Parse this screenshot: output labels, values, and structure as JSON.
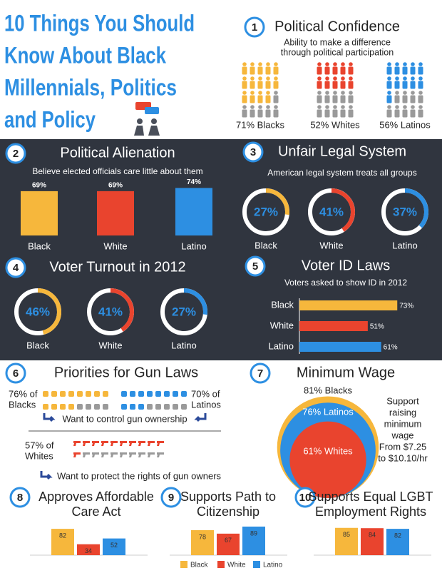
{
  "title": [
    "10 Things You Should",
    "Know About Black",
    "Millennials, Politics",
    "and Policy"
  ],
  "colors": [
    "#f6b73c",
    "#e9442e",
    "#2d8fe2"
  ],
  "legend": [
    "Black",
    "White",
    "Latino"
  ],
  "political_confidence": {
    "number": "1",
    "title": "Political Confidence",
    "subtitle": [
      "Ability to make a difference",
      "through political participation"
    ],
    "groups": [
      {
        "label": "71% Blacks",
        "value": 71
      },
      {
        "label": "52% Whites",
        "value": 52
      },
      {
        "label": "56% Latinos",
        "value": 56
      }
    ]
  },
  "political_alienation": {
    "number": "2",
    "title": "Political Alienation",
    "subtitle": "Believe elected officials care little about them",
    "categories": [
      "Black",
      "White",
      "Latino"
    ],
    "values": [
      69,
      69,
      74
    ],
    "value_labels": [
      "69%",
      "69%",
      "74%"
    ]
  },
  "unfair_legal_system": {
    "number": "3",
    "title": "Unfair Legal System",
    "subtitle": "American legal system treats all groups",
    "categories": [
      "Black",
      "White",
      "Latino"
    ],
    "values": [
      27,
      41,
      37
    ],
    "value_labels": [
      "27%",
      "41%",
      "37%"
    ]
  },
  "voter_turnout": {
    "number": "4",
    "title": "Voter Turnout in 2012",
    "categories": [
      "Black",
      "White",
      "Latino"
    ],
    "values": [
      46,
      41,
      27
    ],
    "value_labels": [
      "46%",
      "41%",
      "27%"
    ]
  },
  "voter_id_laws": {
    "number": "5",
    "title": "Voter ID Laws",
    "subtitle": "Voters asked to show ID in 2012",
    "categories": [
      "Black",
      "White",
      "Latino"
    ],
    "values": [
      73,
      51,
      61
    ],
    "value_labels": [
      "73%",
      "51%",
      "61%"
    ]
  },
  "gun_laws": {
    "number": "6",
    "title": "Priorities for Gun Laws",
    "groups": [
      {
        "label": [
          "76% of",
          "Blacks"
        ],
        "value": 76
      },
      {
        "label": [
          "70% of",
          "Latinos"
        ],
        "value": 70
      },
      {
        "label": [
          "57% of",
          "Whites"
        ],
        "value": 57
      }
    ],
    "control_caption": "Want to control gun ownership",
    "protect_caption": "Want to protect the rights of gun owners"
  },
  "minimum_wage": {
    "number": "7",
    "title": "Minimum Wage",
    "circles": [
      {
        "label": "81% Blacks",
        "value": 81
      },
      {
        "label": "76% Latinos",
        "value": 76
      },
      {
        "label": "61% Whites",
        "value": 61
      }
    ],
    "note": [
      "Support",
      "raising",
      "minimum",
      "wage",
      "From $7.25",
      "to $10.10/hr"
    ]
  },
  "small_charts": [
    {
      "number": "8",
      "title": [
        "Approves Affordable",
        "Care Act"
      ],
      "values": [
        82,
        34,
        52
      ]
    },
    {
      "number": "9",
      "title": [
        "Supports Path to",
        "Citizenship"
      ],
      "values": [
        78,
        67,
        89
      ]
    },
    {
      "number": "10",
      "title": [
        "Supports Equal LGBT",
        "Employment Rights"
      ],
      "values": [
        85,
        84,
        82
      ]
    }
  ]
}
